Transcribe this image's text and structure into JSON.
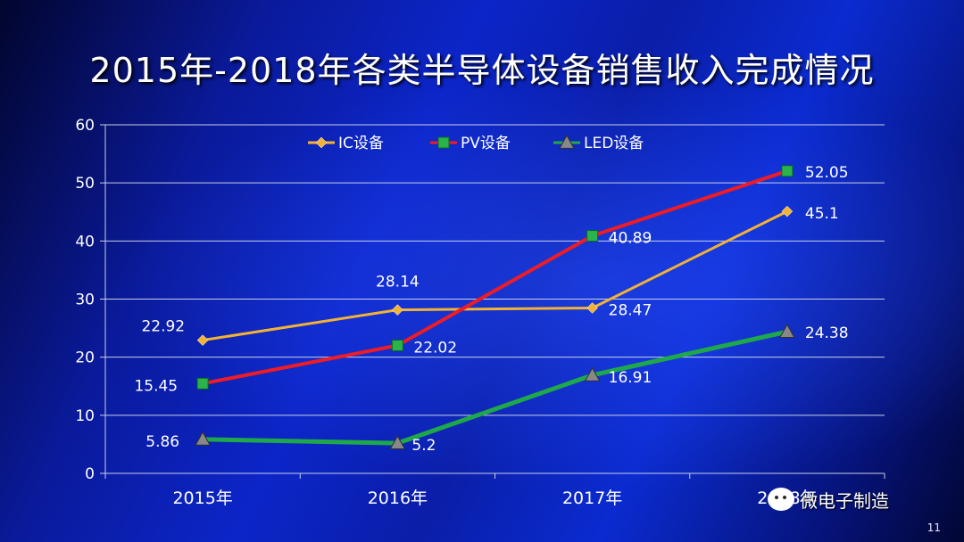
{
  "chart_data": {
    "type": "line",
    "title": "2015年-2018年各类半导体设备销售收入完成情况",
    "categories": [
      "2015年",
      "2016年",
      "2017年",
      "2018年"
    ],
    "ylim": [
      0,
      60
    ],
    "yticks": [
      0,
      10,
      20,
      30,
      40,
      50,
      60
    ],
    "grid": true,
    "legend_position": "top",
    "series": [
      {
        "name": "IC设备",
        "values": [
          22.92,
          28.14,
          28.47,
          45.1
        ],
        "color": "#f2b233",
        "marker": "diamond",
        "labels": [
          "22.92",
          "28.14",
          "28.47",
          "45.1"
        ]
      },
      {
        "name": "PV设备",
        "values": [
          15.45,
          22.02,
          40.89,
          52.05
        ],
        "color": "#ee1c25",
        "marker": "square",
        "labels": [
          "15.45",
          "22.02",
          "40.89",
          "52.05"
        ]
      },
      {
        "name": "LED设备",
        "values": [
          5.86,
          5.2,
          16.91,
          24.38
        ],
        "color": "#1fa84a",
        "marker": "triangle",
        "labels": [
          "5.86",
          "5.2",
          "16.91",
          "24.38"
        ]
      }
    ]
  },
  "footer": {
    "brand": "微电子制造",
    "page_number": "11"
  }
}
